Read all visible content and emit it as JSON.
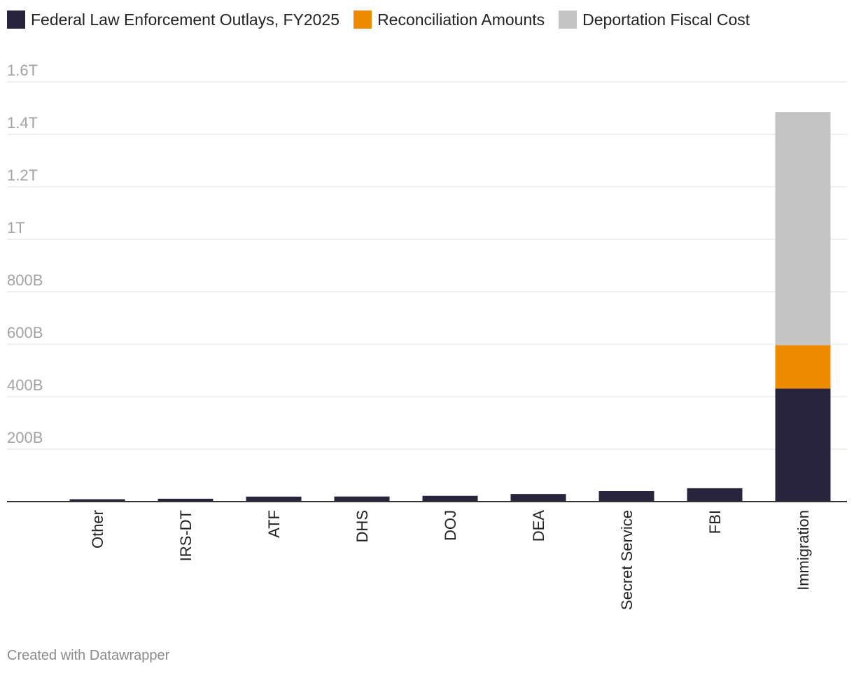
{
  "chart_data": {
    "type": "bar",
    "stacked": true,
    "categories": [
      "Other",
      "IRS-DT",
      "ATF",
      "DHS",
      "DOJ",
      "DEA",
      "Secret Service",
      "FBI",
      "Immigration"
    ],
    "series": [
      {
        "name": "Federal Law Enforcement Outlays, FY2025",
        "color": "#29243d",
        "values": [
          9000000000,
          11000000000,
          19000000000,
          19500000000,
          22000000000,
          29000000000,
          40000000000,
          51000000000,
          431000000000
        ]
      },
      {
        "name": "Reconciliation Amounts",
        "color": "#ef8b00",
        "values": [
          0,
          0,
          0,
          0,
          0,
          0,
          0,
          0,
          165000000000
        ]
      },
      {
        "name": "Deportation Fiscal Cost",
        "color": "#c4c4c4",
        "values": [
          0,
          0,
          0,
          0,
          0,
          0,
          0,
          0,
          889000000000
        ]
      }
    ],
    "yticks": [
      {
        "value": 200000000000,
        "label": "200B"
      },
      {
        "value": 400000000000,
        "label": "400B"
      },
      {
        "value": 600000000000,
        "label": "600B"
      },
      {
        "value": 800000000000,
        "label": "800B"
      },
      {
        "value": 1000000000000,
        "label": "1T"
      },
      {
        "value": 1200000000000,
        "label": "1.2T"
      },
      {
        "value": 1400000000000,
        "label": "1.4T"
      },
      {
        "value": 1600000000000,
        "label": "1.6T"
      }
    ],
    "ylim": [
      0,
      1600000000000
    ],
    "grid": true,
    "legend_position": "top-left",
    "category_label_orientation": "vertical",
    "title": "",
    "xlabel": "",
    "ylabel": ""
  },
  "footer": {
    "credit": "Created with Datawrapper"
  }
}
